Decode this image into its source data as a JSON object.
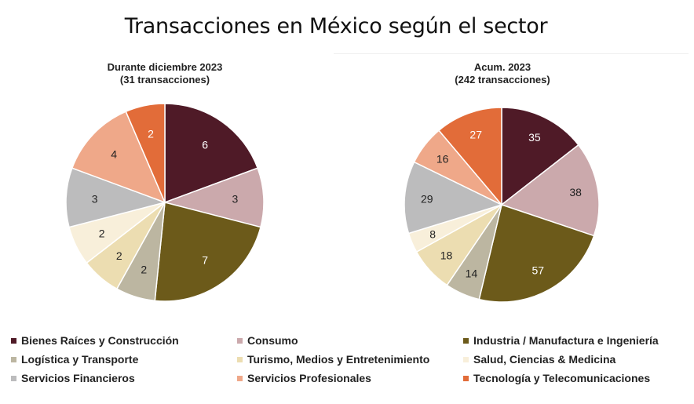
{
  "title": "Transacciones en México según el sector",
  "chart_data": [
    {
      "type": "pie",
      "title": "Durante diciembre 2023",
      "subtitle": "(31 transacciones)",
      "categories": [
        "Bienes Raíces y Construcción",
        "Consumo",
        "Industria / Manufactura e Ingeniería",
        "Logística y Transporte",
        "Turismo, Medios y Entretenimiento",
        "Salud, Ciencias & Medicina",
        "Servicios Financieros",
        "Servicios Profesionales",
        "Tecnología y Telecomunicaciones"
      ],
      "values": [
        6,
        3,
        7,
        2,
        2,
        2,
        3,
        4,
        2
      ]
    },
    {
      "type": "pie",
      "title": "Acum. 2023",
      "subtitle": "(242 transacciones)",
      "categories": [
        "Bienes Raíces y Construcción",
        "Consumo",
        "Industria / Manufactura e Ingeniería",
        "Logística y Transporte",
        "Turismo, Medios y Entretenimiento",
        "Salud, Ciencias & Medicina",
        "Servicios Financieros",
        "Servicios Profesionales",
        "Tecnología y Telecomunicaciones"
      ],
      "values": [
        35,
        38,
        57,
        14,
        18,
        8,
        29,
        16,
        27
      ]
    }
  ],
  "legend": [
    {
      "label": "Bienes Raíces y Construcción",
      "color": "#4f1a27"
    },
    {
      "label": "Consumo",
      "color": "#cba9ac"
    },
    {
      "label": "Industria / Manufactura e Ingeniería",
      "color": "#6c5a1a"
    },
    {
      "label": "Logística y Transporte",
      "color": "#bcb6a1"
    },
    {
      "label": "Turismo, Medios y Entretenimiento",
      "color": "#ecddb1"
    },
    {
      "label": "Salud, Ciencias & Medicina",
      "color": "#f8efda"
    },
    {
      "label": "Servicios Financieros",
      "color": "#bcbcbd"
    },
    {
      "label": "Servicios Profesionales",
      "color": "#efa889"
    },
    {
      "label": "Tecnología y Telecomunicaciones",
      "color": "#e26c39"
    }
  ],
  "label_colors": [
    "#ffffff",
    "#222222",
    "#ffffff",
    "#222222",
    "#222222",
    "#222222",
    "#222222",
    "#222222",
    "#ffffff"
  ]
}
